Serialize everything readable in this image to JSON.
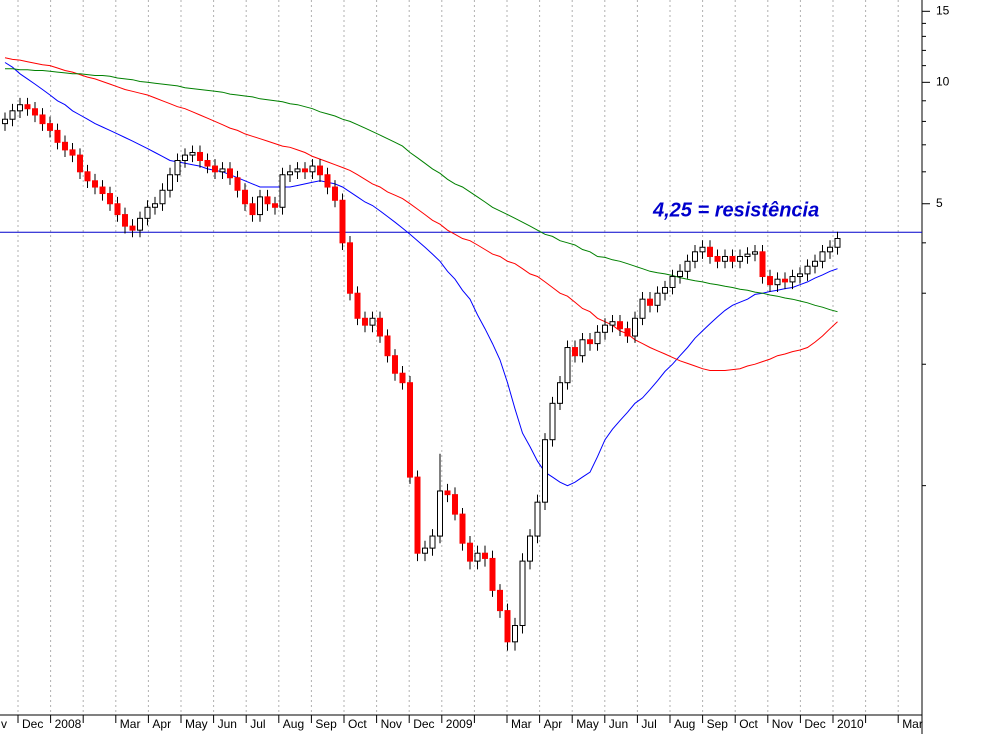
{
  "chart_data": {
    "type": "candlestick",
    "annotation": "4,25 = resistência",
    "resistance": {
      "value": 4.25,
      "color": "#0000cc"
    },
    "log_scale": true,
    "grid": true,
    "ylim": [
      0.27,
      16
    ],
    "yticks": [
      5,
      10,
      15
    ],
    "yminorticks": [
      1,
      2,
      3,
      4,
      6,
      7,
      8,
      9,
      11,
      12,
      13,
      14
    ],
    "months": [
      "v",
      "Dec",
      "2008",
      null,
      "Mar",
      "Apr",
      "May",
      "Jun",
      "Jul",
      "Aug",
      "Sep",
      "Oct",
      "Nov",
      "Dec",
      "2009",
      null,
      "Mar",
      "Apr",
      "May",
      "Jun",
      "Jul",
      "Aug",
      "Sep",
      "Oct",
      "Nov",
      "Dec",
      "2010",
      null,
      "Mar"
    ],
    "up_color": "#ffffff",
    "down_color": "#ff0000",
    "candles": [
      [
        7.9,
        8.42,
        7.58,
        8.1
      ],
      [
        8.1,
        8.84,
        7.78,
        8.5
      ],
      [
        8.5,
        9.15,
        8.16,
        8.8
      ],
      [
        8.8,
        9.15,
        8.26,
        8.6
      ],
      [
        8.6,
        8.94,
        7.97,
        8.3
      ],
      [
        8.3,
        8.63,
        7.58,
        7.9
      ],
      [
        7.9,
        8.22,
        7.3,
        7.6
      ],
      [
        7.6,
        7.9,
        6.82,
        7.1
      ],
      [
        7.1,
        7.38,
        6.53,
        6.8
      ],
      [
        6.8,
        7.07,
        6.34,
        6.6
      ],
      [
        6.6,
        6.86,
        5.76,
        6.0
      ],
      [
        6.0,
        6.24,
        5.47,
        5.7
      ],
      [
        5.7,
        5.93,
        5.28,
        5.5
      ],
      [
        5.5,
        5.72,
        5.09,
        5.3
      ],
      [
        5.3,
        5.51,
        4.8,
        5.0
      ],
      [
        5.0,
        5.2,
        4.51,
        4.7
      ],
      [
        4.7,
        4.89,
        4.22,
        4.4
      ],
      [
        4.4,
        4.58,
        4.13,
        4.3
      ],
      [
        4.3,
        4.78,
        4.13,
        4.6
      ],
      [
        4.6,
        5.1,
        4.42,
        4.9
      ],
      [
        4.9,
        5.2,
        4.7,
        5.0
      ],
      [
        5.0,
        5.62,
        4.8,
        5.4
      ],
      [
        5.4,
        6.14,
        5.18,
        5.9
      ],
      [
        5.9,
        6.66,
        5.66,
        6.4
      ],
      [
        6.4,
        6.86,
        6.14,
        6.6
      ],
      [
        6.6,
        6.97,
        6.34,
        6.7
      ],
      [
        6.7,
        6.97,
        6.14,
        6.4
      ],
      [
        6.4,
        6.66,
        5.95,
        6.2
      ],
      [
        6.2,
        6.45,
        5.76,
        6.0
      ],
      [
        6.0,
        6.34,
        5.76,
        6.1
      ],
      [
        6.1,
        6.34,
        5.57,
        5.8
      ],
      [
        5.8,
        6.03,
        5.18,
        5.4
      ],
      [
        5.4,
        5.62,
        4.8,
        5.0
      ],
      [
        5.0,
        5.2,
        4.51,
        4.7
      ],
      [
        4.7,
        5.41,
        4.51,
        5.2
      ],
      [
        5.2,
        5.41,
        4.8,
        5.0
      ],
      [
        5.0,
        5.2,
        4.7,
        4.9
      ],
      [
        4.9,
        6.14,
        4.7,
        5.9
      ],
      [
        5.9,
        6.24,
        5.66,
        6.0
      ],
      [
        6.0,
        6.34,
        5.76,
        6.1
      ],
      [
        6.1,
        6.34,
        5.76,
        6.0
      ],
      [
        6.0,
        6.45,
        5.76,
        6.2
      ],
      [
        6.2,
        6.45,
        5.66,
        5.9
      ],
      [
        5.9,
        6.14,
        5.28,
        5.5
      ],
      [
        5.5,
        5.72,
        4.9,
        5.1
      ],
      [
        5.1,
        5.3,
        3.84,
        4.0
      ],
      [
        4.0,
        4.16,
        2.88,
        3.0
      ],
      [
        3.0,
        3.12,
        2.5,
        2.6
      ],
      [
        2.6,
        2.7,
        2.4,
        2.5
      ],
      [
        2.5,
        2.7,
        2.4,
        2.6
      ],
      [
        2.6,
        2.7,
        2.26,
        2.35
      ],
      [
        2.35,
        2.44,
        2.02,
        2.1
      ],
      [
        2.1,
        2.18,
        1.82,
        1.9
      ],
      [
        1.9,
        1.98,
        1.73,
        1.8
      ],
      [
        1.8,
        1.87,
        1.01,
        1.05
      ],
      [
        1.05,
        1.09,
        0.65,
        0.68
      ],
      [
        0.68,
        0.73,
        0.65,
        0.7
      ],
      [
        0.7,
        0.78,
        0.67,
        0.75
      ],
      [
        0.75,
        1.2,
        0.72,
        0.97
      ],
      [
        0.97,
        1.01,
        0.91,
        0.95
      ],
      [
        0.95,
        0.99,
        0.82,
        0.85
      ],
      [
        0.85,
        0.88,
        0.69,
        0.72
      ],
      [
        0.72,
        0.75,
        0.62,
        0.65
      ],
      [
        0.65,
        0.71,
        0.62,
        0.68
      ],
      [
        0.68,
        0.71,
        0.63,
        0.66
      ],
      [
        0.66,
        0.69,
        0.53,
        0.55
      ],
      [
        0.55,
        0.57,
        0.47,
        0.49
      ],
      [
        0.49,
        0.51,
        0.39,
        0.41
      ],
      [
        0.41,
        0.47,
        0.39,
        0.45
      ],
      [
        0.45,
        0.68,
        0.43,
        0.65
      ],
      [
        0.65,
        0.78,
        0.62,
        0.75
      ],
      [
        0.75,
        0.95,
        0.72,
        0.91
      ],
      [
        0.91,
        1.35,
        0.87,
        1.3
      ],
      [
        1.3,
        1.66,
        1.25,
        1.6
      ],
      [
        1.6,
        1.87,
        1.54,
        1.8
      ],
      [
        1.8,
        2.29,
        1.73,
        2.2
      ],
      [
        2.2,
        2.29,
        2.02,
        2.1
      ],
      [
        2.1,
        2.39,
        2.02,
        2.3
      ],
      [
        2.3,
        2.39,
        2.16,
        2.25
      ],
      [
        2.25,
        2.5,
        2.16,
        2.4
      ],
      [
        2.4,
        2.6,
        2.3,
        2.5
      ],
      [
        2.5,
        2.65,
        2.4,
        2.55
      ],
      [
        2.55,
        2.65,
        2.35,
        2.45
      ],
      [
        2.45,
        2.55,
        2.26,
        2.35
      ],
      [
        2.35,
        2.7,
        2.26,
        2.6
      ],
      [
        2.6,
        3.02,
        2.5,
        2.9
      ],
      [
        2.9,
        3.02,
        2.69,
        2.8
      ],
      [
        2.8,
        3.12,
        2.69,
        3.0
      ],
      [
        3.0,
        3.22,
        2.88,
        3.1
      ],
      [
        3.1,
        3.43,
        2.98,
        3.3
      ],
      [
        3.3,
        3.54,
        3.17,
        3.4
      ],
      [
        3.4,
        3.74,
        3.26,
        3.6
      ],
      [
        3.6,
        3.95,
        3.46,
        3.8
      ],
      [
        3.8,
        4.06,
        3.65,
        3.9
      ],
      [
        3.9,
        4.06,
        3.55,
        3.7
      ],
      [
        3.7,
        3.85,
        3.46,
        3.6
      ],
      [
        3.6,
        3.85,
        3.46,
        3.7
      ],
      [
        3.7,
        3.85,
        3.46,
        3.6
      ],
      [
        3.6,
        3.85,
        3.46,
        3.7
      ],
      [
        3.7,
        3.9,
        3.55,
        3.75
      ],
      [
        3.75,
        3.95,
        3.6,
        3.8
      ],
      [
        3.8,
        3.95,
        3.17,
        3.3
      ],
      [
        3.3,
        3.43,
        3.02,
        3.15
      ],
      [
        3.15,
        3.38,
        3.02,
        3.25
      ],
      [
        3.25,
        3.38,
        3.07,
        3.2
      ],
      [
        3.2,
        3.43,
        3.07,
        3.3
      ],
      [
        3.3,
        3.48,
        3.17,
        3.35
      ],
      [
        3.35,
        3.64,
        3.22,
        3.5
      ],
      [
        3.5,
        3.74,
        3.36,
        3.6
      ],
      [
        3.6,
        3.95,
        3.46,
        3.8
      ],
      [
        3.8,
        4.06,
        3.65,
        3.9
      ],
      [
        3.9,
        4.26,
        3.74,
        4.1
      ]
    ],
    "series": [
      {
        "color": "#0000ff",
        "values": [
          11.2,
          10.9,
          10.5,
          10.2,
          9.9,
          9.6,
          9.3,
          9.0,
          8.8,
          8.5,
          8.3,
          8.1,
          7.9,
          7.75,
          7.6,
          7.45,
          7.3,
          7.15,
          7.0,
          6.85,
          6.7,
          6.55,
          6.4,
          6.35,
          6.3,
          6.25,
          6.2,
          6.1,
          6.05,
          6.0,
          5.9,
          5.8,
          5.7,
          5.6,
          5.5,
          5.5,
          5.5,
          5.5,
          5.5,
          5.55,
          5.6,
          5.65,
          5.7,
          5.65,
          5.6,
          5.5,
          5.35,
          5.2,
          5.05,
          4.95,
          4.8,
          4.65,
          4.5,
          4.35,
          4.2,
          4.05,
          3.9,
          3.75,
          3.6,
          3.4,
          3.25,
          3.05,
          2.9,
          2.65,
          2.45,
          2.25,
          2.05,
          1.8,
          1.55,
          1.35,
          1.25,
          1.15,
          1.08,
          1.05,
          1.02,
          1.0,
          1.02,
          1.05,
          1.08,
          1.18,
          1.3,
          1.38,
          1.45,
          1.52,
          1.6,
          1.65,
          1.73,
          1.82,
          1.92,
          2.0,
          2.1,
          2.2,
          2.32,
          2.42,
          2.52,
          2.62,
          2.72,
          2.8,
          2.85,
          2.9,
          2.98,
          3.0,
          3.03,
          3.05,
          3.08,
          3.1,
          3.15,
          3.2,
          3.27,
          3.33,
          3.4,
          3.45
        ]
      },
      {
        "color": "#ff0000",
        "values": [
          11.5,
          11.4,
          11.35,
          11.25,
          11.15,
          11.05,
          11.0,
          10.85,
          10.7,
          10.6,
          10.45,
          10.3,
          10.2,
          10.05,
          9.9,
          9.75,
          9.6,
          9.5,
          9.4,
          9.3,
          9.15,
          9.0,
          8.85,
          8.7,
          8.6,
          8.45,
          8.3,
          8.15,
          8.0,
          7.85,
          7.7,
          7.6,
          7.45,
          7.35,
          7.25,
          7.15,
          7.05,
          6.95,
          6.9,
          6.8,
          6.7,
          6.55,
          6.45,
          6.35,
          6.25,
          6.15,
          6.05,
          5.9,
          5.75,
          5.6,
          5.5,
          5.35,
          5.25,
          5.15,
          5.0,
          4.85,
          4.7,
          4.55,
          4.45,
          4.3,
          4.2,
          4.1,
          4.05,
          3.95,
          3.85,
          3.75,
          3.7,
          3.6,
          3.55,
          3.45,
          3.35,
          3.3,
          3.2,
          3.1,
          3.0,
          2.95,
          2.85,
          2.75,
          2.7,
          2.6,
          2.55,
          2.5,
          2.42,
          2.38,
          2.3,
          2.25,
          2.2,
          2.16,
          2.12,
          2.08,
          2.04,
          2.01,
          1.98,
          1.95,
          1.93,
          1.93,
          1.93,
          1.94,
          1.95,
          1.98,
          2.0,
          2.03,
          2.06,
          2.1,
          2.12,
          2.15,
          2.17,
          2.2,
          2.27,
          2.35,
          2.45,
          2.55
        ]
      },
      {
        "color": "#008000",
        "values": [
          10.8,
          10.8,
          10.75,
          10.75,
          10.7,
          10.7,
          10.65,
          10.6,
          10.55,
          10.5,
          10.5,
          10.45,
          10.4,
          10.4,
          10.35,
          10.25,
          10.2,
          10.15,
          10.05,
          10.0,
          9.95,
          9.9,
          9.85,
          9.8,
          9.7,
          9.65,
          9.6,
          9.55,
          9.5,
          9.45,
          9.35,
          9.3,
          9.25,
          9.2,
          9.1,
          9.05,
          9.0,
          8.95,
          8.85,
          8.8,
          8.7,
          8.6,
          8.45,
          8.35,
          8.25,
          8.1,
          8.0,
          7.85,
          7.7,
          7.55,
          7.4,
          7.25,
          7.1,
          6.95,
          6.7,
          6.5,
          6.3,
          6.1,
          5.95,
          5.75,
          5.6,
          5.5,
          5.35,
          5.2,
          5.05,
          4.9,
          4.8,
          4.7,
          4.6,
          4.5,
          4.4,
          4.3,
          4.2,
          4.15,
          4.05,
          4.0,
          3.95,
          3.85,
          3.8,
          3.7,
          3.68,
          3.63,
          3.6,
          3.55,
          3.5,
          3.45,
          3.4,
          3.37,
          3.35,
          3.32,
          3.28,
          3.25,
          3.22,
          3.2,
          3.17,
          3.15,
          3.12,
          3.1,
          3.07,
          3.05,
          3.02,
          3.0,
          2.97,
          2.95,
          2.92,
          2.9,
          2.87,
          2.84,
          2.8,
          2.77,
          2.73,
          2.7
        ]
      }
    ]
  }
}
